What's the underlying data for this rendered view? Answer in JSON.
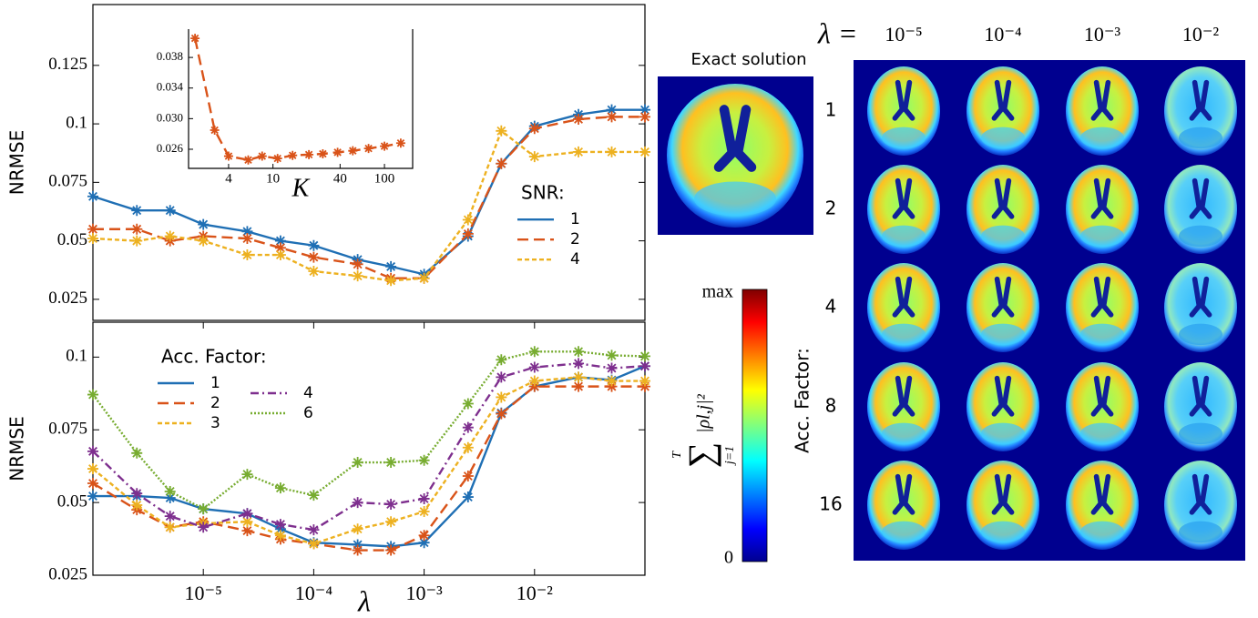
{
  "chart_data": [
    {
      "type": "line",
      "xscale": "log",
      "x": [
        1e-06,
        2.5e-06,
        5e-06,
        1e-05,
        2.5e-05,
        5e-05,
        0.0001,
        0.00025,
        0.0005,
        0.001,
        0.0025,
        0.005,
        0.01,
        0.025,
        0.05,
        0.1
      ],
      "xlim": [
        1e-06,
        0.1
      ],
      "ylabel": "NRMSE",
      "ylim": [
        0.016,
        0.151
      ],
      "yticks": [
        0.025,
        0.05,
        0.075,
        0.1,
        0.125
      ],
      "legend": "center right",
      "legend_title": "SNR:",
      "marker": "*",
      "series": [
        {
          "name": "1",
          "color": "#1f6fb4",
          "linestyle": "solid",
          "values": [
            0.069,
            0.063,
            0.063,
            0.057,
            0.054,
            0.05,
            0.048,
            0.042,
            0.039,
            0.0357,
            0.052,
            0.083,
            0.099,
            0.104,
            0.106,
            0.106
          ]
        },
        {
          "name": "2",
          "color": "#d95319",
          "linestyle": "dashed",
          "values": [
            0.055,
            0.055,
            0.05,
            0.052,
            0.051,
            0.047,
            0.043,
            0.04,
            0.034,
            0.034,
            0.053,
            0.083,
            0.098,
            0.102,
            0.103,
            0.103
          ]
        },
        {
          "name": "4",
          "color": "#edb120",
          "linestyle": "densely dashed",
          "values": [
            0.051,
            0.05,
            0.052,
            0.05,
            0.044,
            0.044,
            0.037,
            0.035,
            0.033,
            0.034,
            0.059,
            0.097,
            0.086,
            0.088,
            0.088,
            0.088
          ]
        }
      ]
    },
    {
      "type": "line",
      "xscale": "log",
      "x": [
        2,
        3,
        4,
        6,
        8,
        11,
        15,
        21,
        28,
        38,
        52,
        72,
        100,
        140
      ],
      "values": [
        0.0405,
        0.0285,
        0.0251,
        0.0246,
        0.0251,
        0.0248,
        0.0252,
        0.0253,
        0.0254,
        0.0256,
        0.0258,
        0.0261,
        0.0264,
        0.0268
      ],
      "color": "#d95319",
      "linestyle": "dashed",
      "marker": "*",
      "xlabel": "K",
      "xlim": [
        1.75,
        179
      ],
      "xticks": [
        4,
        10,
        40,
        100
      ],
      "ylim": [
        0.0235,
        0.0417
      ],
      "yticks": [
        0.026,
        {
          "value": 0.03,
          "label": "0.030"
        },
        0.034,
        0.038
      ]
    },
    {
      "type": "line",
      "xscale": "log",
      "x": [
        1e-06,
        2.5e-06,
        5e-06,
        1e-05,
        2.5e-05,
        5e-05,
        0.0001,
        0.00025,
        0.0005,
        0.001,
        0.0025,
        0.005,
        0.01,
        0.025,
        0.05,
        0.1
      ],
      "xlim": [
        1e-06,
        0.1
      ],
      "xlabel": "λ",
      "ylabel": "NRMSE",
      "xticks": [
        {
          "value": 1e-05,
          "label": "10⁻⁵"
        },
        {
          "value": 0.0001,
          "label": "10⁻⁴"
        },
        {
          "value": 0.001,
          "label": "10⁻³"
        },
        {
          "value": 0.01,
          "label": "10⁻²"
        }
      ],
      "ylim": [
        0.025,
        0.112
      ],
      "yticks": [
        0.025,
        0.05,
        0.075,
        0.1
      ],
      "legend": "upper left",
      "legend_title": "Acc. Factor:",
      "legend_columns": 2,
      "marker": "*",
      "series": [
        {
          "name": "1",
          "color": "#1f6fb4",
          "linestyle": "solid",
          "values": [
            0.0522,
            0.0522,
            0.0516,
            0.0478,
            0.0462,
            0.0409,
            0.0362,
            0.0355,
            0.0349,
            0.0362,
            0.0519,
            0.0808,
            0.0899,
            0.0931,
            0.0921,
            0.0969
          ]
        },
        {
          "name": "2",
          "color": "#d95319",
          "linestyle": "dashed",
          "values": [
            0.0566,
            0.0475,
            0.0415,
            0.0434,
            0.0403,
            0.0374,
            0.0358,
            0.0336,
            0.0336,
            0.0387,
            0.0591,
            0.0805,
            0.0899,
            0.0899,
            0.0899,
            0.0899
          ]
        },
        {
          "name": "3",
          "color": "#edb120",
          "linestyle": "densely dashed",
          "values": [
            0.0616,
            0.0491,
            0.0415,
            0.0428,
            0.0434,
            0.0387,
            0.0358,
            0.0409,
            0.0434,
            0.0469,
            0.0689,
            0.0862,
            0.0918,
            0.0931,
            0.0918,
            0.0918
          ]
        },
        {
          "name": "4",
          "color": "#7e2f8e",
          "linestyle": "dashdot",
          "values": [
            0.0676,
            0.0531,
            0.0453,
            0.0415,
            0.0462,
            0.0425,
            0.0406,
            0.05,
            0.0494,
            0.0513,
            0.0758,
            0.0931,
            0.0965,
            0.0978,
            0.0962,
            0.0969
          ]
        },
        {
          "name": "6",
          "color": "#77ac30",
          "linestyle": "dotted",
          "values": [
            0.0871,
            0.067,
            0.0538,
            0.0478,
            0.0597,
            0.055,
            0.0525,
            0.0638,
            0.0638,
            0.0645,
            0.084,
            0.0991,
            0.1019,
            0.1019,
            0.1006,
            0.1003
          ]
        }
      ]
    }
  ],
  "image_panel": {
    "exact_title": "Exact solution",
    "lambda_label": "λ =",
    "columns": [
      "10⁻⁵",
      "10⁻⁴",
      "10⁻³",
      "10⁻²"
    ],
    "rows": [
      "1",
      "2",
      "4",
      "8",
      "16"
    ],
    "row_title": "Acc. Factor:",
    "colorbar": {
      "max": "max",
      "min": "0",
      "sum": "∑",
      "upper": "T",
      "lower": "j=1",
      "body": "|ρl,j|²"
    }
  }
}
